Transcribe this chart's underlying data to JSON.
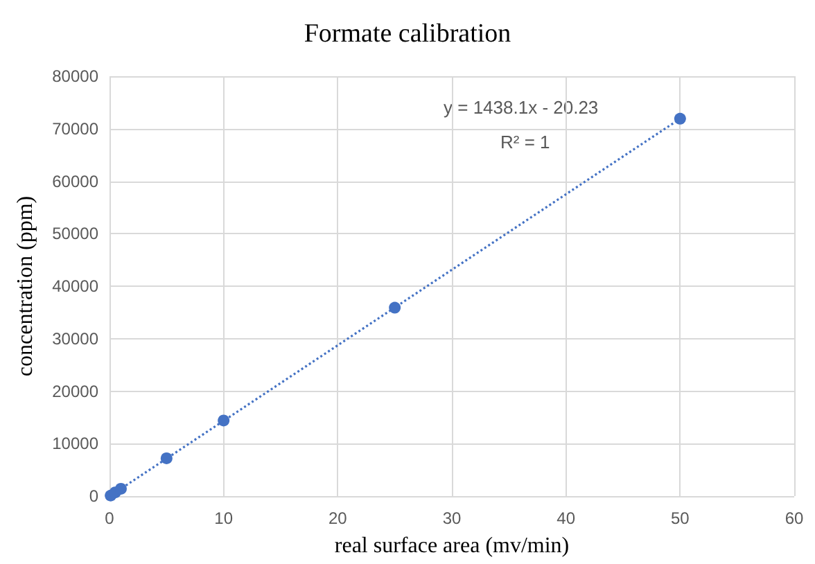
{
  "chart_data": {
    "type": "scatter",
    "title": "Formate calibration",
    "xlabel": "real surface area (mv/min)",
    "ylabel": "concentration (ppm)",
    "annotations": [
      "y = 1438.1x - 20.23",
      "R² = 1"
    ],
    "series": [
      {
        "color": "#4472c4",
        "marker": "circle",
        "x": [
          0.1,
          0.5,
          1,
          5,
          10,
          25,
          50
        ],
        "values": [
          100,
          700,
          1400,
          7200,
          14400,
          35900,
          71900
        ]
      },
      {
        "type": "line",
        "color": "#4472c4",
        "marker": "none",
        "line_style": "dotted",
        "x": [
          0.1,
          50
        ],
        "values": [
          100,
          71900
        ]
      }
    ],
    "xlim": [
      0,
      60
    ],
    "xticks": [
      0,
      10,
      20,
      30,
      40,
      50,
      60
    ],
    "ylim": [
      0,
      80000
    ],
    "yticks": [
      0,
      10000,
      20000,
      30000,
      40000,
      50000,
      60000,
      70000,
      80000
    ],
    "grid": true
  }
}
